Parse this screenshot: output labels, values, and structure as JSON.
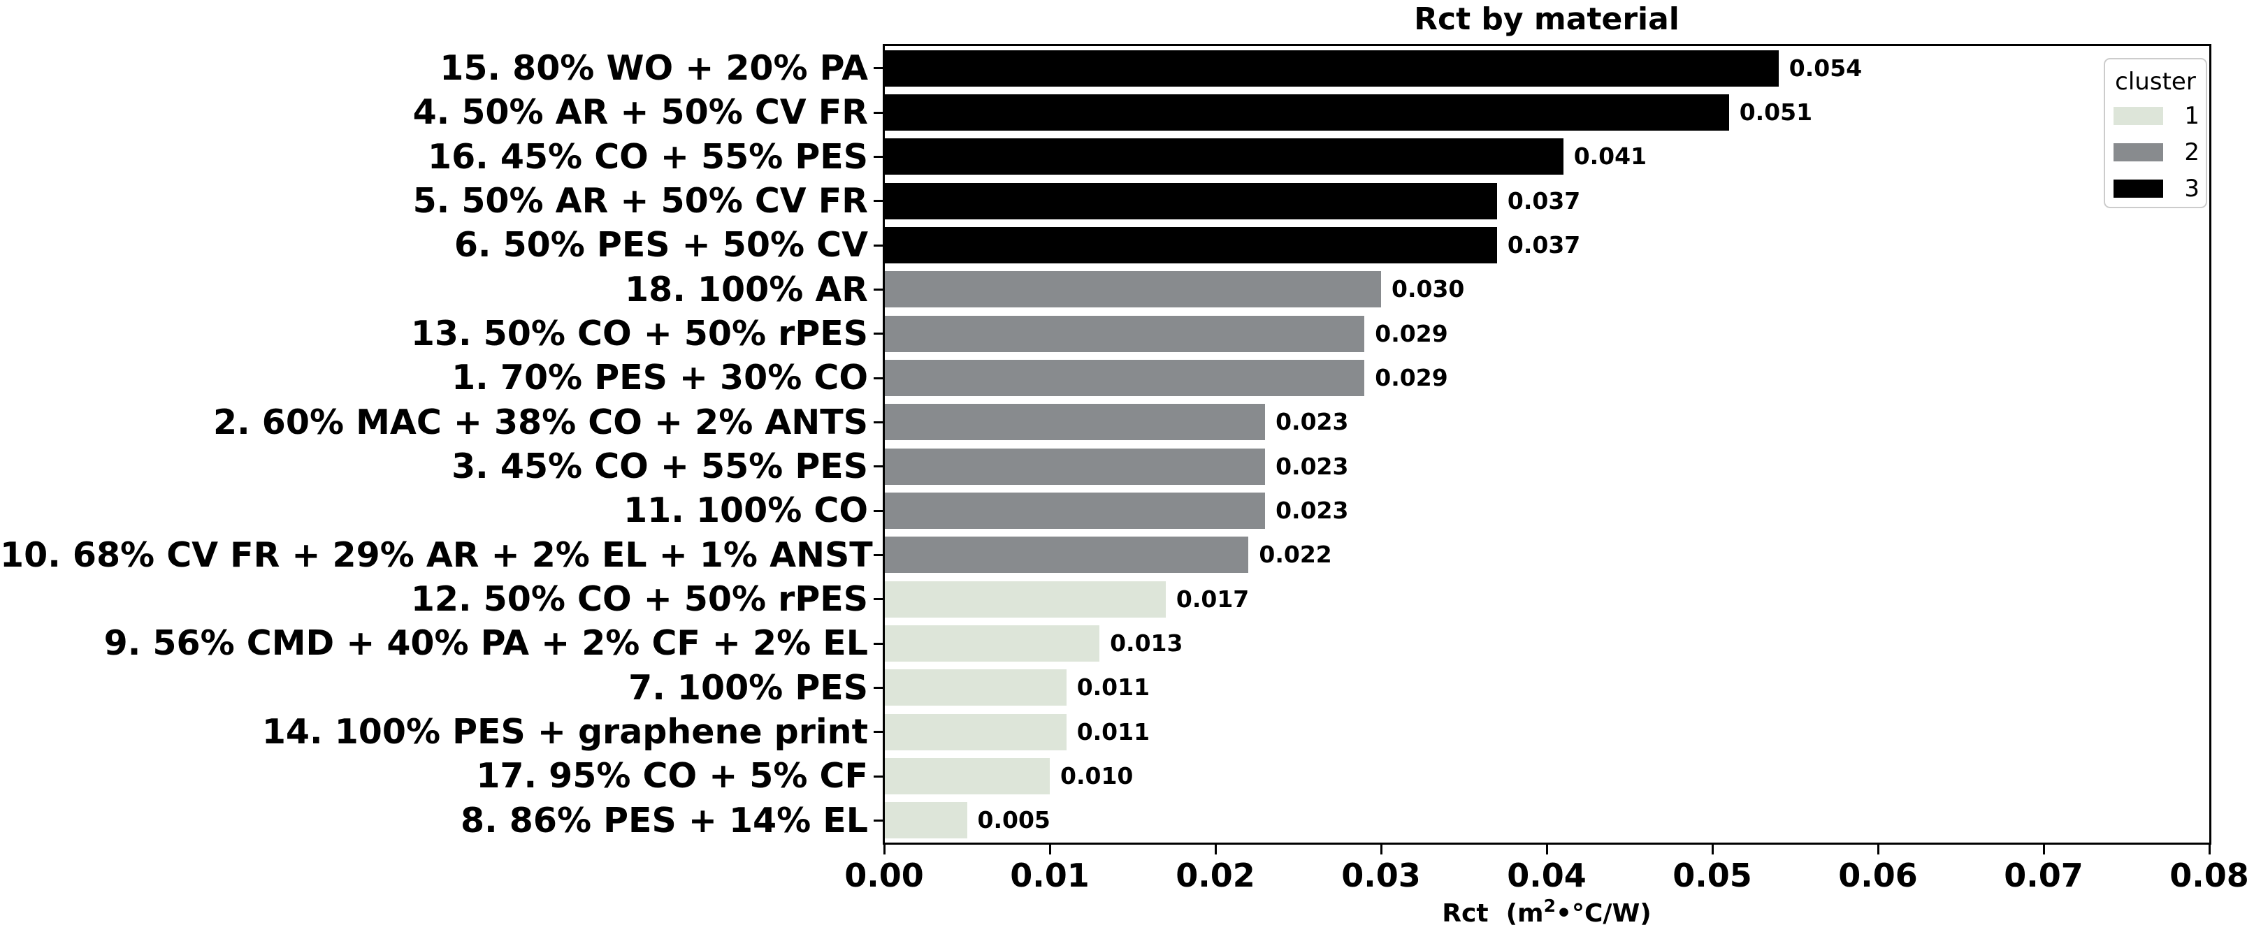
{
  "figure": {
    "background": "#ffffff"
  },
  "chart_data": {
    "type": "bar",
    "orientation": "horizontal",
    "title": "Rct by material",
    "xlabel": "Rct  (m2•°C/W)",
    "xlabel_parts": {
      "prefix": "Rct  (m",
      "superscript": "2",
      "suffix": "•°C/W)"
    },
    "xlim": [
      0,
      0.08
    ],
    "xticks": [
      "0.00",
      "0.01",
      "0.02",
      "0.03",
      "0.04",
      "0.05",
      "0.06",
      "0.07",
      "0.08"
    ],
    "grid": false,
    "categories": [
      "15. 80% WO + 20% PA",
      "4. 50% AR + 50% CV FR",
      "16. 45% CO + 55% PES",
      "5. 50% AR + 50% CV FR",
      "6. 50% PES + 50% CV",
      "18. 100% AR",
      "13. 50% CO + 50% rPES",
      "1. 70% PES + 30% CO",
      "2. 60% MAC + 38% CO + 2% ANTS",
      "3. 45% CO + 55% PES",
      "11. 100% CO",
      "10. 68% CV FR + 29% AR + 2% EL + 1% ANST",
      "12. 50% CO + 50% rPES",
      "9. 56% CMD + 40% PA + 2% CF + 2% EL",
      "7. 100% PES",
      "14. 100% PES + graphene print",
      "17. 95% CO + 5% CF",
      "8. 86% PES + 14% EL"
    ],
    "values": [
      0.054,
      0.051,
      0.041,
      0.037,
      0.037,
      0.03,
      0.029,
      0.029,
      0.023,
      0.023,
      0.023,
      0.022,
      0.017,
      0.013,
      0.011,
      0.011,
      0.01,
      0.005
    ],
    "value_labels": [
      "0.054",
      "0.051",
      "0.041",
      "0.037",
      "0.037",
      "0.030",
      "0.029",
      "0.029",
      "0.023",
      "0.023",
      "0.023",
      "0.022",
      "0.017",
      "0.013",
      "0.011",
      "0.011",
      "0.010",
      "0.005"
    ],
    "clusters": [
      3,
      3,
      3,
      3,
      3,
      2,
      2,
      2,
      2,
      2,
      2,
      2,
      1,
      1,
      1,
      1,
      1,
      1
    ],
    "cluster_colors": {
      "1": "#dde5d9",
      "2": "#888b8e",
      "3": "#000000"
    },
    "legend": {
      "title": "cluster",
      "position": "upper right",
      "entries": [
        {
          "label": "1",
          "color": "#dde5d9"
        },
        {
          "label": "2",
          "color": "#888b8e"
        },
        {
          "label": "3",
          "color": "#000000"
        }
      ]
    }
  }
}
